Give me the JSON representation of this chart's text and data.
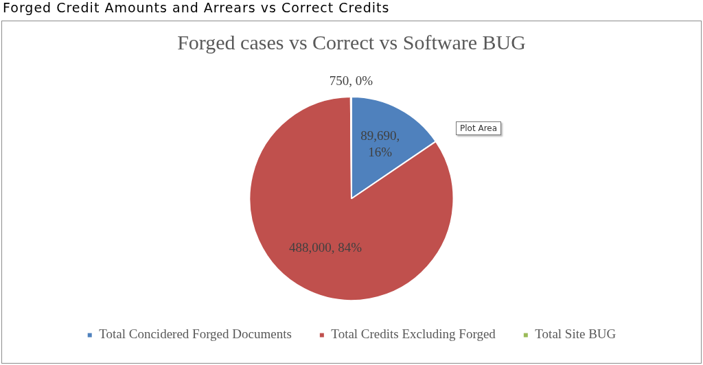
{
  "chart_data": {
    "type": "pie",
    "title": "Forged Credit Amounts and Arrears vs Correct Credits",
    "subtitle": "Forged cases vs Correct vs Software BUG",
    "categories": [
      "Total Concidered Forged Documents",
      "Total Credits Excluding Forged",
      "Total Site BUG"
    ],
    "values": [
      89690,
      488000,
      750
    ],
    "colors": [
      "#4f81bd",
      "#c0504d",
      "#9bbb59"
    ],
    "value_labels": [
      "89,690,\n16%",
      "488,000, 84%",
      "750, 0%"
    ],
    "annotations": [
      "Plot Area"
    ],
    "legend": "bottom"
  }
}
